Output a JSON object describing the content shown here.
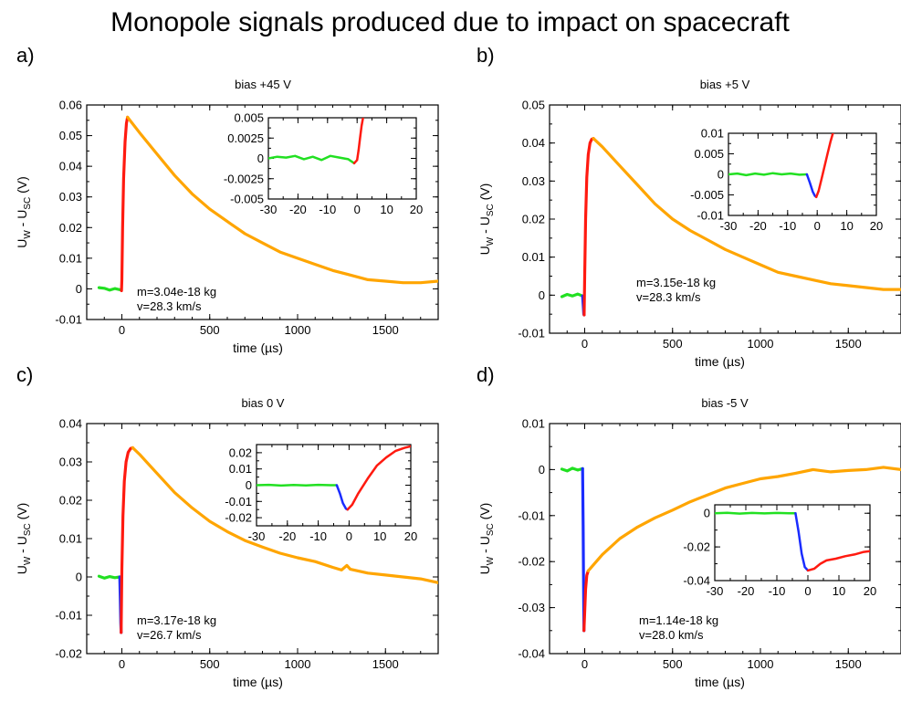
{
  "title": "Monopole signals produced due to impact on spacecraft",
  "colors": {
    "pre": "#22e022",
    "neg": "#1a2cff",
    "rise": "#ff1a10",
    "decay": "#ffa500"
  },
  "chart_data": [
    {
      "type": "line",
      "panel": "a)",
      "title": "bias +45 V",
      "xlabel": "time (µs)",
      "ylabel": "U_W - U_SC (V)",
      "ylabel_main": "U",
      "ylabel_sub1": "W",
      "ylabel_mid": " - U",
      "ylabel_sub2": "SC",
      "ylabel_end": " (V)",
      "xlim": [
        -200,
        1800
      ],
      "ylim": [
        -0.01,
        0.06
      ],
      "xticks": [
        0,
        500,
        1000,
        1500
      ],
      "xtick_labels": [
        "0",
        "500",
        "1000",
        "1500"
      ],
      "yticks": [
        -0.01,
        0,
        0.01,
        0.02,
        0.03,
        0.04,
        0.05,
        0.06
      ],
      "ytick_labels": [
        "-0.01",
        "0",
        "0.01",
        "0.02",
        "0.03",
        "0.04",
        "0.05",
        "0.06"
      ],
      "annotation": [
        "m=3.04e-18 kg",
        "v=28.3 km/s"
      ],
      "series": [
        {
          "segment": "pre",
          "x": [
            -130,
            -100,
            -70,
            -40,
            -10
          ],
          "y": [
            0.0004,
            0.0002,
            -0.0004,
            0.0001,
            -0.0003
          ]
        },
        {
          "segment": "rise",
          "x": [
            -2,
            0,
            4,
            10,
            18,
            26,
            32
          ],
          "y": [
            -0.0006,
            0.003,
            0.02,
            0.036,
            0.048,
            0.054,
            0.056
          ]
        },
        {
          "segment": "decay",
          "x": [
            32,
            100,
            200,
            300,
            400,
            500,
            600,
            700,
            800,
            900,
            1000,
            1100,
            1200,
            1300,
            1400,
            1500,
            1600,
            1700,
            1800
          ],
          "y": [
            0.056,
            0.051,
            0.044,
            0.037,
            0.031,
            0.026,
            0.022,
            0.018,
            0.015,
            0.012,
            0.01,
            0.008,
            0.006,
            0.0045,
            0.003,
            0.0025,
            0.002,
            0.002,
            0.0025
          ]
        }
      ],
      "inset": {
        "xlim": [
          -30,
          20
        ],
        "ylim": [
          -0.005,
          0.005
        ],
        "xticks": [
          -30,
          -20,
          -10,
          0,
          10,
          20
        ],
        "xtick_labels": [
          "-30",
          "-20",
          "-10",
          "0",
          "10",
          "20"
        ],
        "yticks": [
          -0.005,
          -0.0025,
          0,
          0.0025,
          0.005
        ],
        "ytick_labels": [
          "-0.005",
          "-0.0025",
          "0",
          "0.0025",
          "0.005"
        ],
        "series": [
          {
            "segment": "pre",
            "x": [
              -30,
              -27,
              -24,
              -21,
              -18,
              -15,
              -12,
              -9,
              -6,
              -3,
              -1
            ],
            "y": [
              0,
              0.0002,
              0.0001,
              0.0003,
              -0.0001,
              0.0002,
              -0.0002,
              0.0003,
              0.0001,
              -0.0001,
              -0.0006
            ]
          },
          {
            "segment": "rise",
            "x": [
              -1,
              0,
              0.5,
              1,
              1.5,
              2
            ],
            "y": [
              -0.0006,
              -0.0002,
              0.001,
              0.0025,
              0.004,
              0.005
            ]
          }
        ]
      }
    },
    {
      "type": "line",
      "panel": "b)",
      "title": "bias +5 V",
      "xlabel": "time (µs)",
      "ylabel": "U_W - U_SC (V)",
      "ylabel_main": "U",
      "ylabel_sub1": "W",
      "ylabel_mid": " - U",
      "ylabel_sub2": "SC",
      "ylabel_end": " (V)",
      "xlim": [
        -200,
        1800
      ],
      "ylim": [
        -0.01,
        0.05
      ],
      "xticks": [
        0,
        500,
        1000,
        1500
      ],
      "xtick_labels": [
        "0",
        "500",
        "1000",
        "1500"
      ],
      "yticks": [
        -0.01,
        0,
        0.01,
        0.02,
        0.03,
        0.04,
        0.05
      ],
      "ytick_labels": [
        "-0.01",
        "0",
        "0.01",
        "0.02",
        "0.03",
        "0.04",
        "0.05"
      ],
      "annotation": [
        "m=3.15e-18 kg",
        "v=28.3 km/s"
      ],
      "series": [
        {
          "segment": "pre",
          "x": [
            -130,
            -100,
            -70,
            -40,
            -12
          ],
          "y": [
            -0.0004,
            0.0002,
            -0.0002,
            0.0003,
            -0.0002
          ]
        },
        {
          "segment": "neg",
          "x": [
            -12,
            -8,
            -5,
            -3
          ],
          "y": [
            -0.0002,
            -0.003,
            -0.005,
            -0.0052
          ]
        },
        {
          "segment": "rise",
          "x": [
            -3,
            0,
            5,
            12,
            20,
            30,
            40,
            50
          ],
          "y": [
            -0.0052,
            0.005,
            0.02,
            0.031,
            0.037,
            0.04,
            0.041,
            0.0412
          ]
        },
        {
          "segment": "decay",
          "x": [
            50,
            100,
            200,
            300,
            400,
            500,
            600,
            700,
            800,
            900,
            1000,
            1100,
            1200,
            1300,
            1400,
            1500,
            1600,
            1700,
            1800
          ],
          "y": [
            0.0412,
            0.039,
            0.034,
            0.029,
            0.024,
            0.02,
            0.017,
            0.0145,
            0.012,
            0.01,
            0.008,
            0.006,
            0.005,
            0.004,
            0.003,
            0.0025,
            0.002,
            0.0015,
            0.0015
          ]
        }
      ],
      "inset": {
        "xlim": [
          -30,
          20
        ],
        "ylim": [
          -0.01,
          0.01
        ],
        "xticks": [
          -30,
          -20,
          -10,
          0,
          10,
          20
        ],
        "xtick_labels": [
          "-30",
          "-20",
          "-10",
          "0",
          "10",
          "20"
        ],
        "yticks": [
          -0.01,
          -0.005,
          0,
          0.005,
          0.01
        ],
        "ytick_labels": [
          "-0.01",
          "-0.005",
          "0",
          "0.005",
          "0.01"
        ],
        "series": [
          {
            "segment": "pre",
            "x": [
              -30,
              -27,
              -24,
              -21,
              -18,
              -15,
              -12,
              -9,
              -6,
              -3.5
            ],
            "y": [
              0,
              0.0002,
              -0.0002,
              0.0002,
              -0.0001,
              0.0003,
              0,
              0.0002,
              -0.0001,
              0
            ]
          },
          {
            "segment": "neg",
            "x": [
              -3.5,
              -2.5,
              -1.5,
              -0.8,
              -0.3
            ],
            "y": [
              0,
              -0.002,
              -0.0042,
              -0.0052,
              -0.0055
            ]
          },
          {
            "segment": "rise",
            "x": [
              -0.3,
              0.5,
              1.5,
              2.5,
              3.5,
              4.5,
              5.3
            ],
            "y": [
              -0.0055,
              -0.004,
              -0.001,
              0.002,
              0.005,
              0.008,
              0.01
            ]
          }
        ]
      }
    },
    {
      "type": "line",
      "panel": "c)",
      "title": "bias 0 V",
      "xlabel": "time (µs)",
      "ylabel": "U_W - U_SC (V)",
      "ylabel_main": "U",
      "ylabel_sub1": "W",
      "ylabel_mid": " - U",
      "ylabel_sub2": "SC",
      "ylabel_end": " (V)",
      "xlim": [
        -200,
        1800
      ],
      "ylim": [
        -0.02,
        0.04
      ],
      "xticks": [
        0,
        500,
        1000,
        1500
      ],
      "xtick_labels": [
        "0",
        "500",
        "1000",
        "1500"
      ],
      "yticks": [
        -0.02,
        -0.01,
        0,
        0.01,
        0.02,
        0.03,
        0.04
      ],
      "ytick_labels": [
        "-0.02",
        "-0.01",
        "0",
        "0.01",
        "0.02",
        "0.03",
        "0.04"
      ],
      "annotation": [
        "m=3.17e-18 kg",
        "v=26.7 km/s"
      ],
      "series": [
        {
          "segment": "pre",
          "x": [
            -130,
            -100,
            -70,
            -40,
            -12
          ],
          "y": [
            0.0002,
            -0.0003,
            0.0001,
            -0.0002,
            0
          ]
        },
        {
          "segment": "neg",
          "x": [
            -12,
            -9,
            -6,
            -4
          ],
          "y": [
            0,
            -0.006,
            -0.012,
            -0.0145
          ]
        },
        {
          "segment": "rise",
          "x": [
            -4,
            0,
            6,
            14,
            24,
            36,
            50,
            62
          ],
          "y": [
            -0.0145,
            0.002,
            0.016,
            0.025,
            0.03,
            0.0325,
            0.0335,
            0.0337
          ]
        },
        {
          "segment": "decay",
          "x": [
            62,
            100,
            200,
            300,
            400,
            500,
            600,
            700,
            800,
            900,
            1000,
            1100,
            1200,
            1250,
            1280,
            1300,
            1400,
            1500,
            1600,
            1700,
            1800
          ],
          "y": [
            0.0337,
            0.032,
            0.027,
            0.022,
            0.018,
            0.0145,
            0.0118,
            0.0095,
            0.0078,
            0.0062,
            0.005,
            0.004,
            0.0025,
            0.0018,
            0.003,
            0.002,
            0.001,
            0.0005,
            0,
            -0.0005,
            -0.0015
          ]
        }
      ],
      "inset": {
        "xlim": [
          -30,
          20
        ],
        "ylim": [
          -0.025,
          0.025
        ],
        "xticks": [
          -30,
          -20,
          -10,
          0,
          10,
          20
        ],
        "xtick_labels": [
          "-30",
          "-20",
          "-10",
          "0",
          "10",
          "20"
        ],
        "yticks": [
          -0.02,
          -0.01,
          0,
          0.01,
          0.02
        ],
        "ytick_labels": [
          "-0.02",
          "-0.01",
          "0",
          "0.01",
          "0.02"
        ],
        "series": [
          {
            "segment": "pre",
            "x": [
              -30,
              -26,
              -22,
              -18,
              -14,
              -10,
              -6,
              -4
            ],
            "y": [
              0,
              0.0002,
              -0.0002,
              0.0001,
              -0.0001,
              0.0002,
              0,
              0
            ]
          },
          {
            "segment": "neg",
            "x": [
              -4,
              -3,
              -2,
              -1,
              -0.5
            ],
            "y": [
              0,
              -0.005,
              -0.011,
              -0.0145,
              -0.015
            ]
          },
          {
            "segment": "rise",
            "x": [
              -0.5,
              1,
              3,
              6,
              9,
              12,
              15,
              18,
              20
            ],
            "y": [
              -0.015,
              -0.012,
              -0.005,
              0.004,
              0.012,
              0.017,
              0.021,
              0.023,
              0.024
            ]
          }
        ]
      }
    },
    {
      "type": "line",
      "panel": "d)",
      "title": "bias -5 V",
      "xlabel": "time (µs)",
      "ylabel": "U_W - U_SC (V)",
      "ylabel_main": "U",
      "ylabel_sub1": "W",
      "ylabel_mid": " - U",
      "ylabel_sub2": "SC",
      "ylabel_end": " (V)",
      "xlim": [
        -200,
        1800
      ],
      "ylim": [
        -0.04,
        0.01
      ],
      "xticks": [
        0,
        500,
        1000,
        1500
      ],
      "xtick_labels": [
        "0",
        "500",
        "1000",
        "1500"
      ],
      "yticks": [
        -0.04,
        -0.03,
        -0.02,
        -0.01,
        0,
        0.01
      ],
      "ytick_labels": [
        "-0.04",
        "-0.03",
        "-0.02",
        "-0.01",
        "0",
        "0.01"
      ],
      "annotation": [
        "m=1.14e-18 kg",
        "v=28.0 km/s"
      ],
      "series": [
        {
          "segment": "pre",
          "x": [
            -130,
            -100,
            -70,
            -40,
            -12
          ],
          "y": [
            0.0001,
            -0.0003,
            0.0003,
            -0.0001,
            0.0002
          ]
        },
        {
          "segment": "neg",
          "x": [
            -12,
            -9,
            -6,
            -4
          ],
          "y": [
            0.0002,
            -0.012,
            -0.026,
            -0.035
          ]
        },
        {
          "segment": "rise",
          "x": [
            -4,
            0,
            5,
            12,
            20
          ],
          "y": [
            -0.035,
            -0.031,
            -0.026,
            -0.023,
            -0.022
          ]
        },
        {
          "segment": "decay",
          "x": [
            20,
            100,
            200,
            300,
            400,
            500,
            600,
            700,
            800,
            900,
            1000,
            1100,
            1200,
            1300,
            1400,
            1500,
            1600,
            1700,
            1800
          ],
          "y": [
            -0.022,
            -0.0185,
            -0.015,
            -0.0125,
            -0.0105,
            -0.0088,
            -0.007,
            -0.0055,
            -0.004,
            -0.003,
            -0.002,
            -0.0015,
            -0.0008,
            0,
            -0.0005,
            -0.0002,
            0,
            0.0005,
            0
          ]
        }
      ],
      "inset": {
        "xlim": [
          -30,
          20
        ],
        "ylim": [
          -0.04,
          0.005
        ],
        "xticks": [
          -30,
          -20,
          -10,
          0,
          10,
          20
        ],
        "xtick_labels": [
          "-30",
          "-20",
          "-10",
          "0",
          "10",
          "20"
        ],
        "yticks": [
          -0.04,
          -0.02,
          0
        ],
        "ytick_labels": [
          "-0.04",
          "-0.02",
          "0"
        ],
        "series": [
          {
            "segment": "pre",
            "x": [
              -30,
              -26,
              -22,
              -18,
              -14,
              -10,
              -6,
              -4
            ],
            "y": [
              0,
              0.0003,
              -0.0002,
              0.0002,
              -0.0001,
              0.0002,
              0,
              0
            ]
          },
          {
            "segment": "neg",
            "x": [
              -4,
              -3,
              -2,
              -1,
              0
            ],
            "y": [
              0,
              -0.011,
              -0.024,
              -0.032,
              -0.034
            ]
          },
          {
            "segment": "rise",
            "x": [
              0,
              2,
              4,
              6,
              9,
              12,
              15,
              18,
              20
            ],
            "y": [
              -0.034,
              -0.033,
              -0.03,
              -0.028,
              -0.027,
              -0.0255,
              -0.0245,
              -0.023,
              -0.0225
            ]
          }
        ]
      }
    }
  ]
}
